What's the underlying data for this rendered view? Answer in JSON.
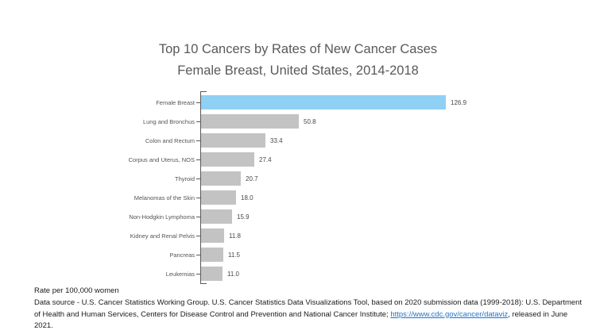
{
  "title": {
    "line1": "Top 10 Cancers by Rates of New Cancer Cases",
    "line2": "Female Breast, United States, 2014-2018"
  },
  "chart_data": {
    "type": "bar",
    "orientation": "horizontal",
    "title": "Top 10 Cancers by Rates of New Cancer Cases — Female Breast, United States, 2014-2018",
    "categories": [
      "Female Breast",
      "Lung and Bronchus",
      "Colon and Rectum",
      "Corpus and Uterus, NOS",
      "Thyroid",
      "Melanomas of the Skin",
      "Non-Hodgkin Lymphoma",
      "Kidney and Renal Pelvis",
      "Pancreas",
      "Leukemias"
    ],
    "values": [
      126.9,
      50.8,
      33.4,
      27.4,
      20.7,
      18.0,
      15.9,
      11.8,
      11.5,
      11.0
    ],
    "value_labels": [
      "126.9",
      "50.8",
      "33.4",
      "27.4",
      "20.7",
      "18.0",
      "15.9",
      "11.8",
      "11.5",
      "11.0"
    ],
    "xlabel": "Rate per 100,000 women",
    "xlim": [
      0,
      130
    ],
    "grid": false,
    "legend": false,
    "highlight_index": 0,
    "bar_colors": {
      "highlight": "#8FD0F5",
      "default": "#C3C3C3"
    },
    "axis_color": "#595959"
  },
  "footer": {
    "rate_note": "Rate per 100,000 women",
    "source_prefix": "Data source - U.S. Cancer Statistics Working Group. U.S. Cancer Statistics Data Visualizations Tool, based on 2020 submission data (1999-2018): U.S. Department of Health and Human Services, Centers for Disease Control and Prevention and National Cancer Institute; ",
    "source_link": "https://www.cdc.gov/cancer/dataviz",
    "source_suffix": ", released in June 2021."
  }
}
